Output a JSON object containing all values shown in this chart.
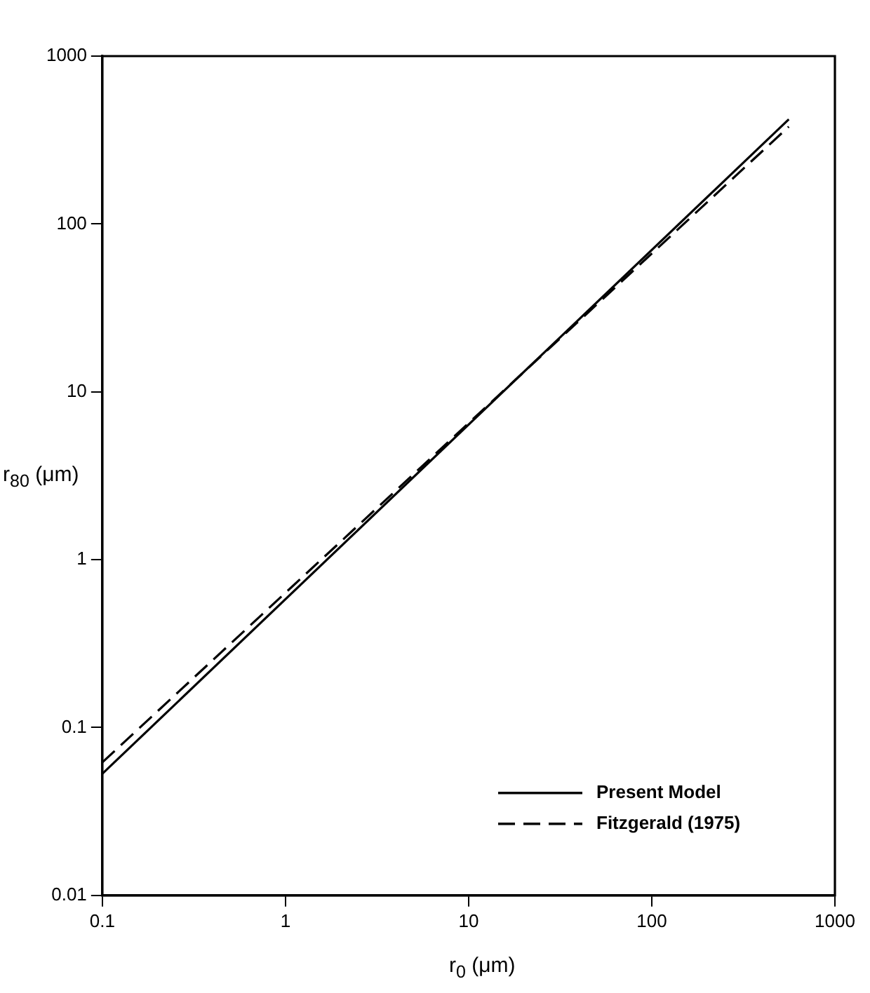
{
  "chart_data": {
    "type": "line",
    "xlabel": "r$_{0}$ (μm)",
    "ylabel": "r$_{80}$ (μm)",
    "log": "xy",
    "xlim": [
      0.1,
      1000
    ],
    "xticks": [
      0.1,
      1,
      10,
      100,
      1000
    ],
    "ylim": [
      0.01,
      1000
    ],
    "yticks": [
      0.01,
      0.1,
      1,
      10,
      100,
      1000
    ],
    "grid": false,
    "x": [
      0.1,
      560
    ],
    "legend": "bottom right",
    "marker": "none",
    "series": [
      {
        "name": "Present Model",
        "color": "#000000",
        "line_style": "solid",
        "values": [
          0.053,
          420
        ]
      },
      {
        "name": "Fitzgerald (1975)",
        "color": "#000000",
        "line_style": "dashed",
        "values": [
          0.062,
          380
        ]
      }
    ]
  }
}
